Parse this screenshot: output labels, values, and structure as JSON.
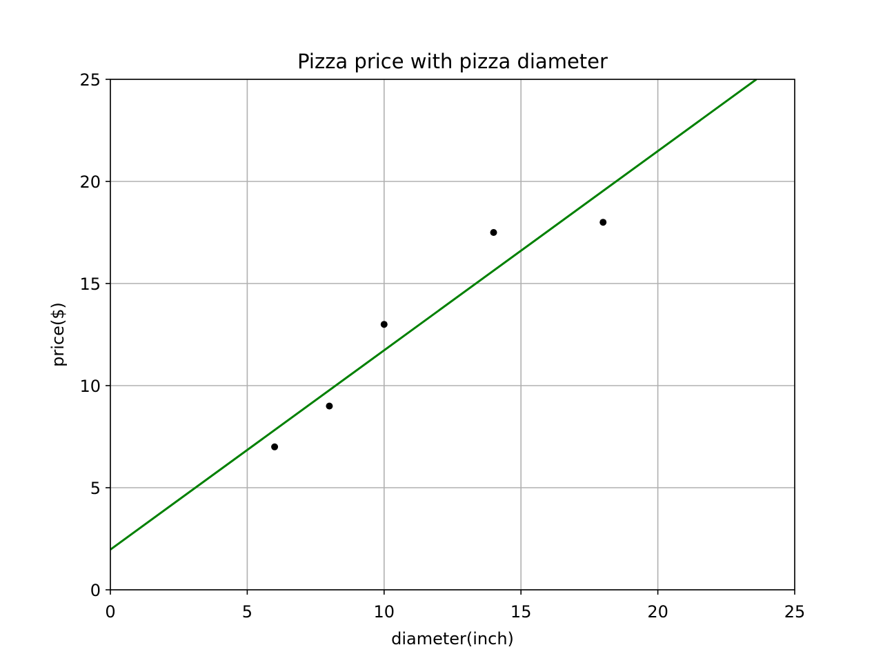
{
  "chart_data": {
    "type": "scatter",
    "title": "Pizza price with pizza diameter",
    "xlabel": "diameter(inch)",
    "ylabel": "price($)",
    "xlim": [
      0,
      25
    ],
    "ylim": [
      0,
      25
    ],
    "xticks": [
      "0",
      "5",
      "10",
      "15",
      "20",
      "25"
    ],
    "yticks": [
      "0",
      "5",
      "10",
      "15",
      "20",
      "25"
    ],
    "grid": true,
    "series": [
      {
        "type": "scatter",
        "color": "#000000",
        "x": [
          6,
          8,
          10,
          14,
          18
        ],
        "y": [
          7,
          9,
          13,
          17.5,
          18
        ]
      },
      {
        "type": "line",
        "color": "#008000",
        "x": [
          0,
          23.6
        ],
        "y": [
          1.97,
          25
        ]
      }
    ]
  }
}
